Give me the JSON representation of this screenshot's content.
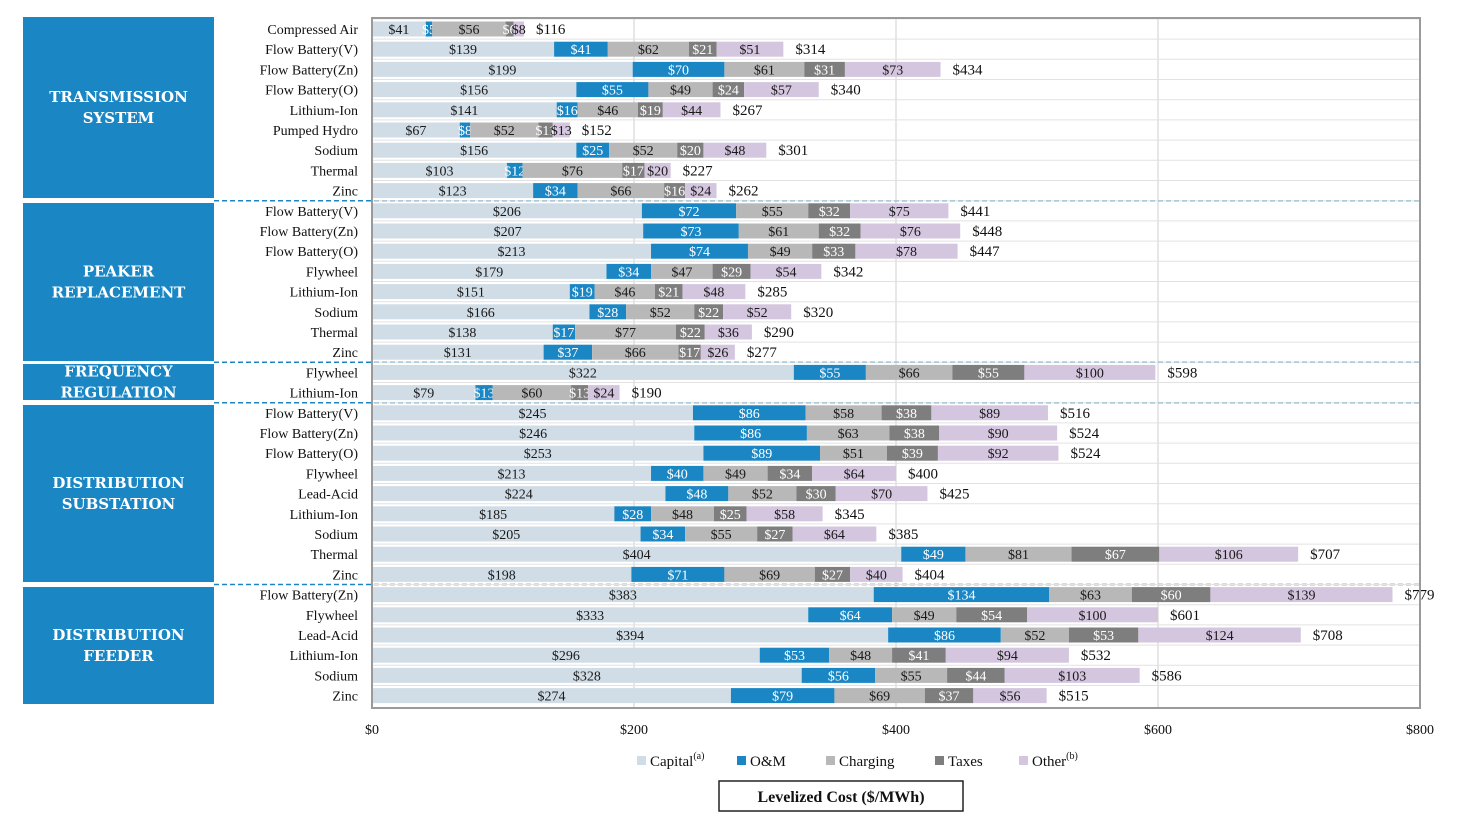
{
  "chart_data": {
    "type": "bar",
    "orientation": "horizontal",
    "stacked": true,
    "xlabel": "Levelized Cost ($/MWh)",
    "xlim": [
      0,
      800
    ],
    "xticks": [
      0,
      200,
      400,
      600,
      800
    ],
    "xtick_labels": [
      "$0",
      "$200",
      "$400",
      "$600",
      "$800"
    ],
    "grid": true,
    "legend_position": "bottom",
    "series": [
      {
        "name": "Capital",
        "superscript": "(a)",
        "color": "#d1dde6"
      },
      {
        "name": "O&M",
        "superscript": "",
        "color": "#1a87c4"
      },
      {
        "name": "Charging",
        "superscript": "",
        "color": "#b8b8b8"
      },
      {
        "name": "Taxes",
        "superscript": "",
        "color": "#7e7e7e"
      },
      {
        "name": "Other",
        "superscript": "(b)",
        "color": "#d4c6df"
      }
    ],
    "groups": [
      {
        "name_lines": [
          "TRANSMISSION",
          "SYSTEM"
        ],
        "rows": [
          {
            "label": "Compressed Air",
            "values": [
              41,
              5,
              56,
              6,
              8
            ],
            "labels": [
              "$41",
              "$5",
              "$56",
              "$6",
              "$8"
            ],
            "total": "$116"
          },
          {
            "label": "Flow Battery(V)",
            "values": [
              139,
              41,
              62,
              21,
              51
            ],
            "labels": [
              "$139",
              "$41",
              "$62",
              "$21",
              "$51"
            ],
            "total": "$314"
          },
          {
            "label": "Flow Battery(Zn)",
            "values": [
              199,
              70,
              61,
              31,
              73
            ],
            "labels": [
              "$199",
              "$70",
              "$61",
              "$31",
              "$73"
            ],
            "total": "$434"
          },
          {
            "label": "Flow Battery(O)",
            "values": [
              156,
              55,
              49,
              24,
              57
            ],
            "labels": [
              "$156",
              "$55",
              "$49",
              "$24",
              "$57"
            ],
            "total": "$340"
          },
          {
            "label": "Lithium-Ion",
            "values": [
              141,
              16,
              46,
              19,
              44
            ],
            "labels": [
              "$141",
              "$16",
              "$46",
              "$19",
              "$44"
            ],
            "total": "$267"
          },
          {
            "label": "Pumped Hydro",
            "values": [
              67,
              8,
              52,
              11,
              13
            ],
            "labels": [
              "$67",
              "$8",
              "$52",
              "$11",
              "$13"
            ],
            "total": "$152"
          },
          {
            "label": "Sodium",
            "values": [
              156,
              25,
              52,
              20,
              48
            ],
            "labels": [
              "$156",
              "$25",
              "$52",
              "$20",
              "$48"
            ],
            "total": "$301"
          },
          {
            "label": "Thermal",
            "values": [
              103,
              12,
              76,
              17,
              20
            ],
            "labels": [
              "$103",
              "$12",
              "$76",
              "$17",
              "$20"
            ],
            "total": "$227"
          },
          {
            "label": "Zinc",
            "values": [
              123,
              34,
              66,
              16,
              24
            ],
            "labels": [
              "$123",
              "$34",
              "$66",
              "$16",
              "$24"
            ],
            "total": "$262"
          }
        ]
      },
      {
        "name_lines": [
          "PEAKER",
          "REPLACEMENT"
        ],
        "rows": [
          {
            "label": "Flow Battery(V)",
            "values": [
              206,
              72,
              55,
              32,
              75
            ],
            "labels": [
              "$206",
              "$72",
              "$55",
              "$32",
              "$75"
            ],
            "total": "$441"
          },
          {
            "label": "Flow Battery(Zn)",
            "values": [
              207,
              73,
              61,
              32,
              76
            ],
            "labels": [
              "$207",
              "$73",
              "$61",
              "$32",
              "$76"
            ],
            "total": "$448"
          },
          {
            "label": "Flow Battery(O)",
            "values": [
              213,
              74,
              49,
              33,
              78
            ],
            "labels": [
              "$213",
              "$74",
              "$49",
              "$33",
              "$78"
            ],
            "total": "$447"
          },
          {
            "label": "Flywheel",
            "values": [
              179,
              34,
              47,
              29,
              54
            ],
            "labels": [
              "$179",
              "$34",
              "$47",
              "$29",
              "$54"
            ],
            "total": "$342"
          },
          {
            "label": "Lithium-Ion",
            "values": [
              151,
              19,
              46,
              21,
              48
            ],
            "labels": [
              "$151",
              "$19",
              "$46",
              "$21",
              "$48"
            ],
            "total": "$285"
          },
          {
            "label": "Sodium",
            "values": [
              166,
              28,
              52,
              22,
              52
            ],
            "labels": [
              "$166",
              "$28",
              "$52",
              "$22",
              "$52"
            ],
            "total": "$320"
          },
          {
            "label": "Thermal",
            "values": [
              138,
              17,
              77,
              22,
              36
            ],
            "labels": [
              "$138",
              "$17",
              "$77",
              "$22",
              "$36"
            ],
            "total": "$290"
          },
          {
            "label": "Zinc",
            "values": [
              131,
              37,
              66,
              17,
              26
            ],
            "labels": [
              "$131",
              "$37",
              "$66",
              "$17",
              "$26"
            ],
            "total": "$277"
          }
        ]
      },
      {
        "name_lines": [
          "FREQUENCY",
          "REGULATION"
        ],
        "rows": [
          {
            "label": "Flywheel",
            "values": [
              322,
              55,
              66,
              55,
              100
            ],
            "labels": [
              "$322",
              "$55",
              "$66",
              "$55",
              "$100"
            ],
            "total": "$598"
          },
          {
            "label": "Lithium-Ion",
            "values": [
              79,
              13,
              60,
              13,
              24
            ],
            "labels": [
              "$79",
              "$13",
              "$60",
              "$13",
              "$24"
            ],
            "total": "$190"
          }
        ]
      },
      {
        "name_lines": [
          "DISTRIBUTION",
          "SUBSTATION"
        ],
        "rows": [
          {
            "label": "Flow Battery(V)",
            "values": [
              245,
              86,
              58,
              38,
              89
            ],
            "labels": [
              "$245",
              "$86",
              "$58",
              "$38",
              "$89"
            ],
            "total": "$516"
          },
          {
            "label": "Flow Battery(Zn)",
            "values": [
              246,
              86,
              63,
              38,
              90
            ],
            "labels": [
              "$246",
              "$86",
              "$63",
              "$38",
              "$90"
            ],
            "total": "$524"
          },
          {
            "label": "Flow Battery(O)",
            "values": [
              253,
              89,
              51,
              39,
              92
            ],
            "labels": [
              "$253",
              "$89",
              "$51",
              "$39",
              "$92"
            ],
            "total": "$524"
          },
          {
            "label": "Flywheel",
            "values": [
              213,
              40,
              49,
              34,
              64
            ],
            "labels": [
              "$213",
              "$40",
              "$49",
              "$34",
              "$64"
            ],
            "total": "$400"
          },
          {
            "label": "Lead-Acid",
            "values": [
              224,
              48,
              52,
              30,
              70
            ],
            "labels": [
              "$224",
              "$48",
              "$52",
              "$30",
              "$70"
            ],
            "total": "$425"
          },
          {
            "label": "Lithium-Ion",
            "values": [
              185,
              28,
              48,
              25,
              58
            ],
            "labels": [
              "$185",
              "$28",
              "$48",
              "$25",
              "$58"
            ],
            "total": "$345"
          },
          {
            "label": "Sodium",
            "values": [
              205,
              34,
              55,
              27,
              64
            ],
            "labels": [
              "$205",
              "$34",
              "$55",
              "$27",
              "$64"
            ],
            "total": "$385"
          },
          {
            "label": "Thermal",
            "values": [
              404,
              49,
              81,
              67,
              106
            ],
            "labels": [
              "$404",
              "$49",
              "$81",
              "$67",
              "$106"
            ],
            "total": "$707"
          },
          {
            "label": "Zinc",
            "values": [
              198,
              71,
              69,
              27,
              40
            ],
            "labels": [
              "$198",
              "$71",
              "$69",
              "$27",
              "$40"
            ],
            "total": "$404"
          }
        ]
      },
      {
        "name_lines": [
          "DISTRIBUTION",
          "FEEDER"
        ],
        "rows": [
          {
            "label": "Flow Battery(Zn)",
            "values": [
              383,
              134,
              63,
              60,
              139
            ],
            "labels": [
              "$383",
              "$134",
              "$63",
              "$60",
              "$139"
            ],
            "total": "$779"
          },
          {
            "label": "Flywheel",
            "values": [
              333,
              64,
              49,
              54,
              100
            ],
            "labels": [
              "$333",
              "$64",
              "$49",
              "$54",
              "$100"
            ],
            "total": "$601"
          },
          {
            "label": "Lead-Acid",
            "values": [
              394,
              86,
              52,
              53,
              124
            ],
            "labels": [
              "$394",
              "$86",
              "$52",
              "$53",
              "$124"
            ],
            "total": "$708"
          },
          {
            "label": "Lithium-Ion",
            "values": [
              296,
              53,
              48,
              41,
              94
            ],
            "labels": [
              "$296",
              "$53",
              "$48",
              "$41",
              "$94"
            ],
            "total": "$532"
          },
          {
            "label": "Sodium",
            "values": [
              328,
              56,
              55,
              44,
              103
            ],
            "labels": [
              "$328",
              "$56",
              "$55",
              "$44",
              "$103"
            ],
            "total": "$586"
          },
          {
            "label": "Zinc",
            "values": [
              274,
              79,
              69,
              37,
              56
            ],
            "labels": [
              "$274",
              "$79",
              "$69",
              "$37",
              "$56"
            ],
            "total": "$515"
          }
        ]
      }
    ]
  }
}
